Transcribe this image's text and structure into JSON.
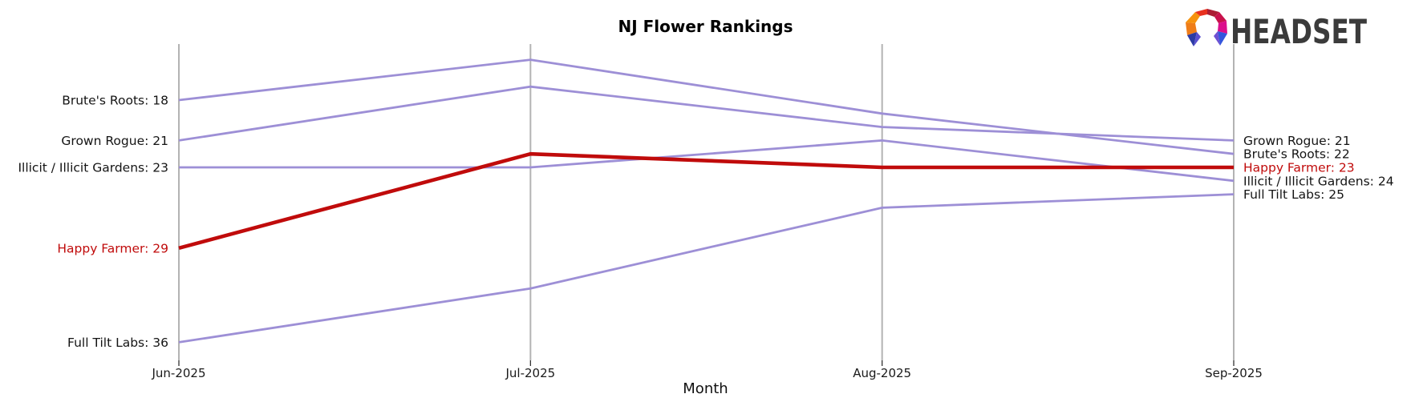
{
  "logo": {
    "text": "HEADSET"
  },
  "colors": {
    "highlight_red": "#c00b0b",
    "line_purple": "#9d8fd6",
    "axis_gray": "#b3b3b3",
    "label_black": "#141414"
  },
  "chart_data": {
    "type": "line",
    "variant": "bump-ranking",
    "title": "NJ Flower Rankings",
    "xlabel": "Month",
    "categories": [
      "Jun-2025",
      "Jul-2025",
      "Aug-2025",
      "Sep-2025"
    ],
    "y_meaning": "brand rank (lower number = higher position)",
    "ylim": [
      13.8,
      37.5
    ],
    "grid": false,
    "legend": "labels at line start and end points",
    "series": [
      {
        "name": "Brute's Roots",
        "values": [
          18,
          15,
          19,
          22
        ],
        "color": "#9d8fd6",
        "emphasis": false,
        "left_label": "Brute's Roots: 18",
        "right_label": "Brute's Roots: 22"
      },
      {
        "name": "Grown Rogue",
        "values": [
          21,
          17,
          20,
          21
        ],
        "color": "#9d8fd6",
        "emphasis": false,
        "left_label": "Grown Rogue: 21",
        "right_label": "Grown Rogue: 21"
      },
      {
        "name": "Illicit / Illicit Gardens",
        "values": [
          23,
          23,
          21,
          24
        ],
        "color": "#9d8fd6",
        "emphasis": false,
        "left_label": "Illicit / Illicit Gardens: 23",
        "right_label": "Illicit / Illicit Gardens: 24"
      },
      {
        "name": "Happy Farmer",
        "values": [
          29,
          22,
          23,
          23
        ],
        "color": "#c00b0b",
        "emphasis": true,
        "left_label": "Happy Farmer: 29",
        "right_label": "Happy Farmer: 23"
      },
      {
        "name": "Full Tilt Labs",
        "values": [
          36,
          32,
          26,
          25
        ],
        "color": "#9d8fd6",
        "emphasis": false,
        "left_label": "Full Tilt Labs: 36",
        "right_label": "Full Tilt Labs: 25"
      }
    ]
  }
}
